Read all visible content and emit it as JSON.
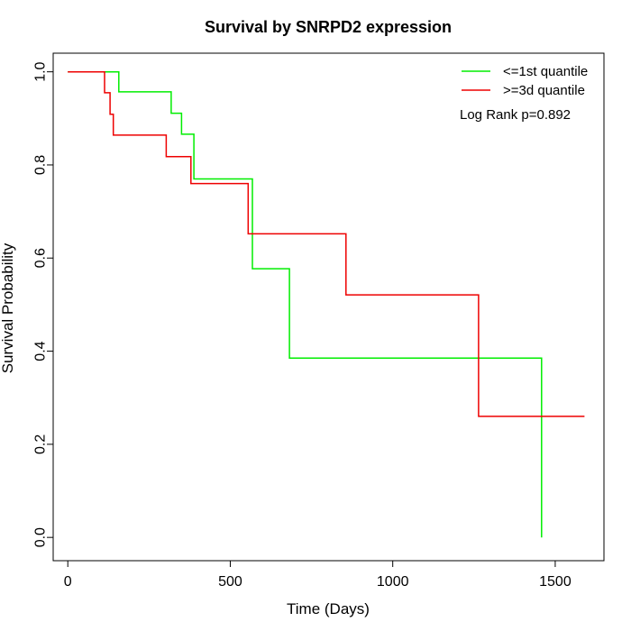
{
  "chart_data": {
    "type": "line",
    "title": "Survival by SNRPD2 expression",
    "xlabel": "Time (Days)",
    "ylabel": "Survival Probability",
    "xlim": [
      -45,
      1650
    ],
    "ylim": [
      -0.05,
      1.04
    ],
    "x_ticks": [
      0,
      500,
      1000,
      1500
    ],
    "x_tick_labels": [
      "0",
      "500",
      "1000",
      "1500"
    ],
    "y_ticks": [
      0.0,
      0.2,
      0.4,
      0.6,
      0.8,
      1.0
    ],
    "y_tick_labels": [
      "0.0",
      "0.2",
      "0.4",
      "0.6",
      "0.8",
      "1.0"
    ],
    "grid": false,
    "legend_position": "top-right",
    "annotation": "Log Rank p=0.892",
    "series": [
      {
        "name": "<=1st quantile",
        "color": "#00ee00",
        "step": true,
        "points": [
          [
            0,
            1.0
          ],
          [
            157,
            1.0
          ],
          [
            157,
            0.957
          ],
          [
            318,
            0.957
          ],
          [
            318,
            0.911
          ],
          [
            350,
            0.911
          ],
          [
            350,
            0.866
          ],
          [
            388,
            0.866
          ],
          [
            388,
            0.77
          ],
          [
            568,
            0.77
          ],
          [
            568,
            0.577
          ],
          [
            682,
            0.577
          ],
          [
            682,
            0.385
          ],
          [
            1458,
            0.385
          ],
          [
            1458,
            0.0
          ]
        ]
      },
      {
        "name": ">=3d quantile",
        "color": "#ee0000",
        "step": true,
        "points": [
          [
            0,
            1.0
          ],
          [
            113,
            1.0
          ],
          [
            113,
            0.955
          ],
          [
            130,
            0.955
          ],
          [
            130,
            0.909
          ],
          [
            140,
            0.909
          ],
          [
            140,
            0.864
          ],
          [
            303,
            0.864
          ],
          [
            303,
            0.818
          ],
          [
            379,
            0.818
          ],
          [
            379,
            0.76
          ],
          [
            555,
            0.76
          ],
          [
            555,
            0.652
          ],
          [
            856,
            0.652
          ],
          [
            856,
            0.521
          ],
          [
            1264,
            0.521
          ],
          [
            1264,
            0.26
          ],
          [
            1590,
            0.26
          ]
        ]
      }
    ]
  }
}
